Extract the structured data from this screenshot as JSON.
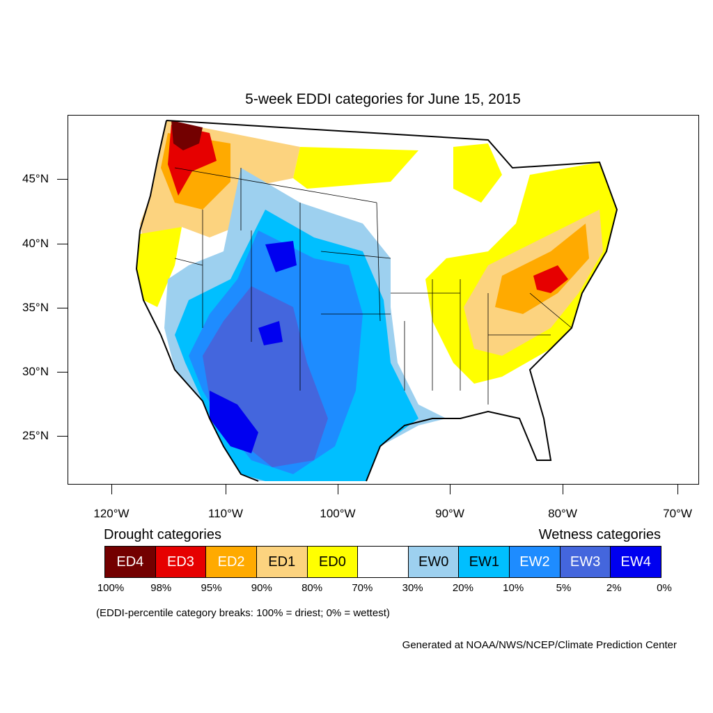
{
  "title": "5-week EDDI categories for June 15, 2015",
  "lat_labels": [
    "45°N",
    "40°N",
    "35°N",
    "30°N",
    "25°N"
  ],
  "lon_labels": [
    "120°W",
    "110°W",
    "100°W",
    "90°W",
    "80°W",
    "70°W"
  ],
  "legend": {
    "drought_heading": "Drought categories",
    "wetness_heading": "Wetness categories",
    "categories": [
      {
        "label": "ED4",
        "color": "#730000",
        "text_color": "#ffffff"
      },
      {
        "label": "ED3",
        "color": "#e60000",
        "text_color": "#ffffff"
      },
      {
        "label": "ED2",
        "color": "#ffaa00",
        "text_color": "#ffffff"
      },
      {
        "label": "ED1",
        "color": "#fcd37f",
        "text_color": "#000000"
      },
      {
        "label": "ED0",
        "color": "#ffff00",
        "text_color": "#000000"
      },
      {
        "label": "",
        "color": "#ffffff",
        "text_color": "#000000"
      },
      {
        "label": "EW0",
        "color": "#9dd0ef",
        "text_color": "#000000"
      },
      {
        "label": "EW1",
        "color": "#00bfff",
        "text_color": "#000000"
      },
      {
        "label": "EW2",
        "color": "#1e8cff",
        "text_color": "#ffffff"
      },
      {
        "label": "EW3",
        "color": "#4466dd",
        "text_color": "#ffffff"
      },
      {
        "label": "EW4",
        "color": "#0000f0",
        "text_color": "#ffffff"
      }
    ],
    "breaks": [
      "100%",
      "98%",
      "95%",
      "90%",
      "80%",
      "70%",
      "30%",
      "20%",
      "10%",
      "5%",
      "2%",
      "0%"
    ]
  },
  "note": "(EDDI-percentile category breaks: 100% = driest; 0% = wettest)",
  "credit": "Generated at NOAA/NWS/NCEP/Climate Prediction Center"
}
